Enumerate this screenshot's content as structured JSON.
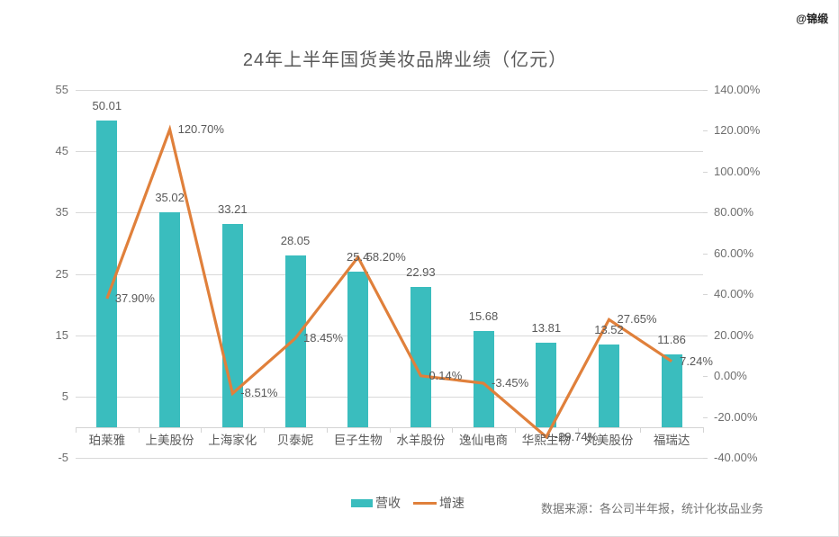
{
  "watermark": "@锦缎",
  "source_note": "数据来源：各公司半年报，统计化妆品业务",
  "colors": {
    "bar": "#3ABDBE",
    "line": "#E0803B",
    "grid": "#D9D9D9",
    "label_text": "#595959",
    "axis_text": "#6E6E6E"
  },
  "chart_data": {
    "type": "combo",
    "title": "24年上半年国货美妆品牌业绩（亿元）",
    "categories": [
      "珀莱雅",
      "上美股份",
      "上海家化",
      "贝泰妮",
      "巨子生物",
      "水羊股份",
      "逸仙电商",
      "华熙生物",
      "丸美股份",
      "福瑞达"
    ],
    "series": [
      {
        "name": "营收",
        "type": "bar",
        "axis": "left",
        "values": [
          50.01,
          35.02,
          33.21,
          28.05,
          25.4,
          22.93,
          15.68,
          13.81,
          13.52,
          11.86
        ],
        "labels": [
          "50.01",
          "35.02",
          "33.21",
          "28.05",
          "25.4",
          "22.93",
          "15.68",
          "13.81",
          "13.52",
          "11.86"
        ]
      },
      {
        "name": "增速",
        "type": "line",
        "axis": "right",
        "values": [
          37.9,
          120.7,
          -8.51,
          18.45,
          58.2,
          0.14,
          -3.45,
          -29.74,
          27.65,
          7.24
        ],
        "labels": [
          "37.90%",
          "120.70%",
          "-8.51%",
          "18.45%",
          "58.20%",
          "0.14%",
          "-3.45%",
          "-29.74%",
          "27.65%",
          "7.24%"
        ]
      }
    ],
    "left_axis": {
      "min": -5,
      "max": 55,
      "tick_values": [
        55,
        45,
        35,
        25,
        15,
        5,
        -5
      ],
      "tick_labels": [
        "55",
        "45",
        "35",
        "25",
        "15",
        "5",
        "-5"
      ]
    },
    "right_axis": {
      "min": -40,
      "max": 140,
      "tick_values": [
        140,
        120,
        100,
        80,
        60,
        40,
        20,
        0,
        -20,
        -40
      ],
      "tick_labels": [
        "140.00%",
        "120.00%",
        "100.00%",
        "80.00%",
        "60.00%",
        "40.00%",
        "20.00%",
        "0.00%",
        "-20.00%",
        "-40.00%"
      ]
    },
    "grid": true,
    "legend_position": "bottom"
  }
}
